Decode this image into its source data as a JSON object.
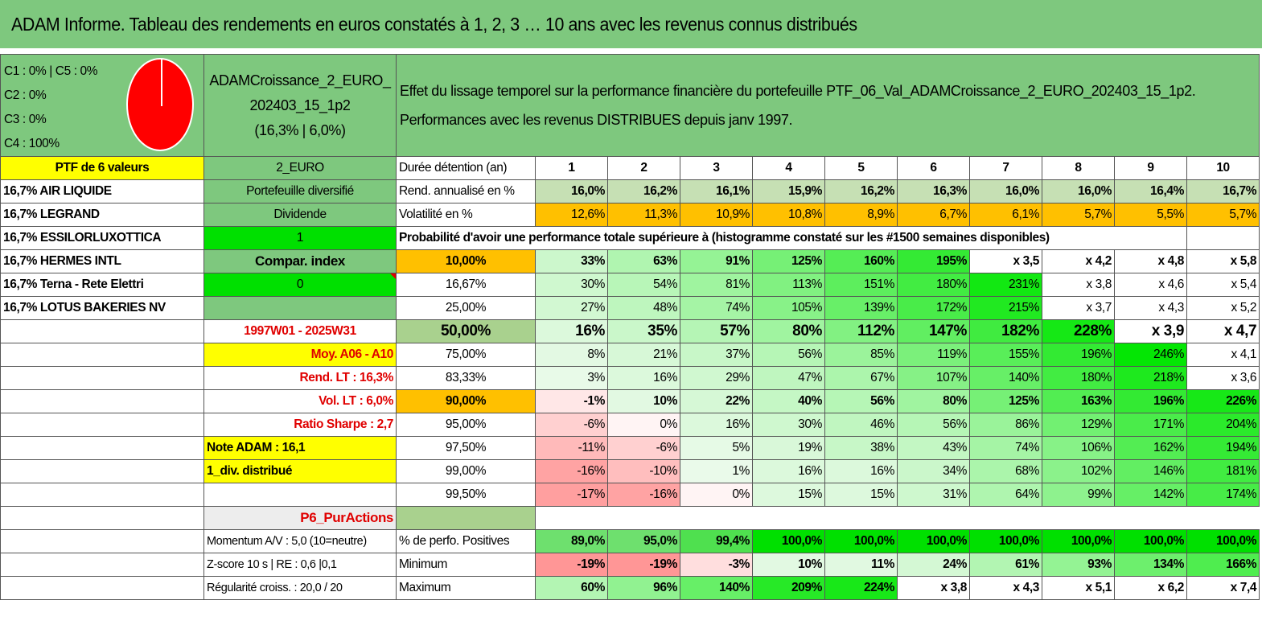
{
  "title": "ADAM Informe. Tableau des rendements en euros constatés à 1, 2, 3 … 10 ans avec les revenus connus distribués",
  "classes": [
    "C1 : 0% | C5 : 0%",
    "C2 : 0%",
    "C3 : 0%",
    "C4 : 100%"
  ],
  "pie_color": "#ff0000",
  "portfolio": {
    "name_line1": "ADAMCroissance_2_EURO_",
    "name_line2": "202403_15_1p2",
    "name_line3": "(16,3% | 6,0%)"
  },
  "description": {
    "line1": "Effet du lissage temporel sur la performance financière du portefeuille PTF_06_Val_ADAMCroissance_2_EURO_202403_15_1p2.",
    "line2": "Performances avec les revenus DISTRIBUES depuis janv 1997."
  },
  "ptf_label": "PTF de 6 valeurs",
  "currency": "2_EURO",
  "duration_label": "Durée détention (an)",
  "years": [
    "1",
    "2",
    "3",
    "4",
    "5",
    "6",
    "7",
    "8",
    "9",
    "10"
  ],
  "holdings": [
    "16,7% AIR LIQUIDE",
    "16,7% LEGRAND",
    "16,7% ESSILORLUXOTTICA",
    "16,7% HERMES INTL",
    "16,7% Terna - Rete Elettri",
    "16,7% LOTUS BAKERIES NV"
  ],
  "col2": {
    "diversified": "Portefeuille diversifié",
    "dividend": "Dividende",
    "dividend_val": "1",
    "compar_index": "Compar. index",
    "compar_val": "0",
    "period": "1997W01 - 2025W31",
    "moy": "Moy. A06 - A10",
    "rend_lt": "Rend. LT : 16,3%",
    "vol_lt": "Vol. LT : 6,0%",
    "sharpe": "Ratio Sharpe : 2,7",
    "note": "Note ADAM : 16,1",
    "div_distrib": "1_div. distribué",
    "pur_actions": "P6_PurActions",
    "momentum": "Momentum A/V : 5,0 (10=neutre)",
    "zscore": "Z-score 10 s | RE : 0,6 |0,1",
    "regularite": "Régularité croiss. : 20,0 / 20"
  },
  "rend_label": "Rend. annualisé en %",
  "rend_values": [
    "16,0%",
    "16,2%",
    "16,1%",
    "15,9%",
    "16,2%",
    "16,3%",
    "16,0%",
    "16,0%",
    "16,4%",
    "16,7%"
  ],
  "vol_label": "Volatilité en %",
  "vol_values": [
    "12,6%",
    "11,3%",
    "10,9%",
    "10,8%",
    "8,9%",
    "6,7%",
    "6,1%",
    "5,7%",
    "5,5%",
    "5,7%"
  ],
  "prob_header": "Probabilité d'avoir une performance totale supérieure à (histogramme constaté sur les #1500 semaines disponibles)",
  "prob_rows": [
    {
      "pct": "10,00%",
      "vals": [
        "33%",
        "63%",
        "91%",
        "125%",
        "160%",
        "195%",
        "x 3,5",
        "x 4,2",
        "x 4,8",
        "x 5,8"
      ]
    },
    {
      "pct": "16,67%",
      "vals": [
        "30%",
        "54%",
        "81%",
        "113%",
        "151%",
        "180%",
        "231%",
        "x 3,8",
        "x 4,6",
        "x 5,4"
      ]
    },
    {
      "pct": "25,00%",
      "vals": [
        "27%",
        "48%",
        "74%",
        "105%",
        "139%",
        "172%",
        "215%",
        "x 3,7",
        "x 4,3",
        "x 5,2"
      ]
    },
    {
      "pct": "50,00%",
      "vals": [
        "16%",
        "35%",
        "57%",
        "80%",
        "112%",
        "147%",
        "182%",
        "228%",
        "x 3,9",
        "x 4,7"
      ]
    },
    {
      "pct": "75,00%",
      "vals": [
        "8%",
        "21%",
        "37%",
        "56%",
        "85%",
        "119%",
        "155%",
        "196%",
        "246%",
        "x 4,1"
      ]
    },
    {
      "pct": "83,33%",
      "vals": [
        "3%",
        "16%",
        "29%",
        "47%",
        "67%",
        "107%",
        "140%",
        "180%",
        "218%",
        "x 3,6"
      ]
    },
    {
      "pct": "90,00%",
      "vals": [
        "-1%",
        "10%",
        "22%",
        "40%",
        "56%",
        "80%",
        "125%",
        "163%",
        "196%",
        "226%"
      ]
    },
    {
      "pct": "95,00%",
      "vals": [
        "-6%",
        "0%",
        "16%",
        "30%",
        "46%",
        "56%",
        "86%",
        "129%",
        "171%",
        "204%"
      ]
    },
    {
      "pct": "97,50%",
      "vals": [
        "-11%",
        "-6%",
        "5%",
        "19%",
        "38%",
        "43%",
        "74%",
        "106%",
        "162%",
        "194%"
      ]
    },
    {
      "pct": "99,00%",
      "vals": [
        "-16%",
        "-10%",
        "1%",
        "16%",
        "16%",
        "34%",
        "68%",
        "102%",
        "146%",
        "181%"
      ]
    },
    {
      "pct": "99,50%",
      "vals": [
        "-17%",
        "-16%",
        "0%",
        "15%",
        "15%",
        "31%",
        "64%",
        "99%",
        "142%",
        "174%"
      ]
    }
  ],
  "pos_label": "% de perfo. Positives",
  "pos_values": [
    "89,0%",
    "95,0%",
    "99,4%",
    "100,0%",
    "100,0%",
    "100,0%",
    "100,0%",
    "100,0%",
    "100,0%",
    "100,0%"
  ],
  "min_label": "Minimum",
  "min_values": [
    "-19%",
    "-19%",
    "-3%",
    "10%",
    "11%",
    "24%",
    "61%",
    "93%",
    "134%",
    "166%"
  ],
  "max_label": "Maximum",
  "max_values": [
    "60%",
    "96%",
    "140%",
    "209%",
    "224%",
    "x 3,8",
    "x 4,3",
    "x 5,1",
    "x 6,2",
    "x 7,4"
  ]
}
